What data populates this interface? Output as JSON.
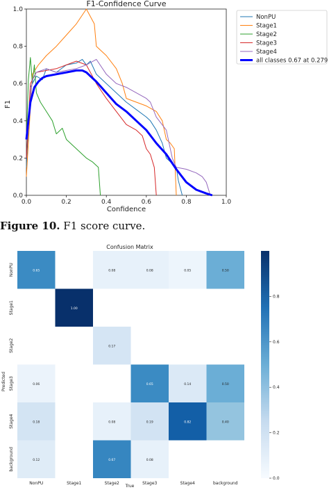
{
  "figure_caption": {
    "label": "Figure 10.",
    "text": "F1 score curve."
  },
  "chart_data": [
    {
      "type": "line",
      "title": "F1-Confidence Curve",
      "xlabel": "Confidence",
      "ylabel": "F1",
      "xlim": [
        0,
        1
      ],
      "ylim": [
        0,
        1
      ],
      "xticks": [
        "0.0",
        "0.2",
        "0.4",
        "0.6",
        "0.8",
        "1.0"
      ],
      "yticks": [
        "0.0",
        "0.2",
        "0.4",
        "0.6",
        "0.8",
        "1.0"
      ],
      "legend_position": "outside-right",
      "series": [
        {
          "name": "NonPU",
          "color": "#1f77b4",
          "width": 1,
          "x": [
            0,
            0.02,
            0.05,
            0.08,
            0.1,
            0.15,
            0.2,
            0.25,
            0.28,
            0.3,
            0.32,
            0.35,
            0.4,
            0.45,
            0.5,
            0.55,
            0.6,
            0.62,
            0.65,
            0.68,
            0.7,
            0.72,
            0.75,
            0.76,
            0.78
          ],
          "y": [
            0.15,
            0.58,
            0.64,
            0.62,
            0.68,
            0.66,
            0.7,
            0.71,
            0.73,
            0.7,
            0.72,
            0.65,
            0.6,
            0.55,
            0.5,
            0.46,
            0.42,
            0.4,
            0.35,
            0.28,
            0.2,
            0.18,
            0.15,
            0.08,
            0.0
          ]
        },
        {
          "name": "Stage1",
          "color": "#ff7f0e",
          "width": 1,
          "x": [
            0,
            0.03,
            0.06,
            0.1,
            0.15,
            0.2,
            0.25,
            0.3,
            0.34,
            0.35,
            0.4,
            0.45,
            0.48,
            0.5,
            0.55,
            0.6,
            0.65,
            0.68,
            0.7,
            0.72,
            0.74,
            0.75
          ],
          "y": [
            0.1,
            0.65,
            0.7,
            0.75,
            0.8,
            0.86,
            0.92,
            1.0,
            0.92,
            0.8,
            0.75,
            0.68,
            0.6,
            0.52,
            0.5,
            0.48,
            0.45,
            0.4,
            0.3,
            0.28,
            0.25,
            0.0
          ]
        },
        {
          "name": "Stage2",
          "color": "#2ca02c",
          "width": 1,
          "x": [
            0,
            0.01,
            0.02,
            0.03,
            0.04,
            0.05,
            0.07,
            0.1,
            0.13,
            0.15,
            0.18,
            0.2,
            0.22,
            0.25,
            0.28,
            0.3,
            0.33,
            0.36,
            0.37
          ],
          "y": [
            0.3,
            0.62,
            0.74,
            0.6,
            0.7,
            0.55,
            0.5,
            0.45,
            0.4,
            0.33,
            0.36,
            0.3,
            0.28,
            0.25,
            0.22,
            0.2,
            0.18,
            0.15,
            0.0
          ]
        },
        {
          "name": "Stage3",
          "color": "#d62728",
          "width": 1,
          "x": [
            0,
            0.02,
            0.05,
            0.1,
            0.15,
            0.2,
            0.25,
            0.3,
            0.35,
            0.4,
            0.45,
            0.5,
            0.55,
            0.58,
            0.6,
            0.62,
            0.64,
            0.65
          ],
          "y": [
            0.2,
            0.6,
            0.66,
            0.67,
            0.68,
            0.7,
            0.72,
            0.7,
            0.6,
            0.52,
            0.45,
            0.38,
            0.35,
            0.32,
            0.25,
            0.22,
            0.15,
            0.0
          ]
        },
        {
          "name": "Stage4",
          "color": "#9467bd",
          "width": 1,
          "x": [
            0,
            0.03,
            0.05,
            0.1,
            0.15,
            0.2,
            0.25,
            0.3,
            0.35,
            0.4,
            0.45,
            0.5,
            0.55,
            0.6,
            0.62,
            0.65,
            0.7,
            0.73,
            0.75,
            0.8,
            0.85,
            0.88,
            0.9,
            0.92
          ],
          "y": [
            0.3,
            0.62,
            0.66,
            0.68,
            0.66,
            0.67,
            0.68,
            0.7,
            0.73,
            0.65,
            0.6,
            0.58,
            0.55,
            0.52,
            0.5,
            0.42,
            0.35,
            0.2,
            0.15,
            0.14,
            0.12,
            0.1,
            0.07,
            0.0
          ]
        },
        {
          "name": "all classes 0.67 at 0.279",
          "color": "#0000ff",
          "width": 3,
          "x": [
            0,
            0.01,
            0.02,
            0.04,
            0.06,
            0.08,
            0.1,
            0.15,
            0.2,
            0.25,
            0.28,
            0.3,
            0.35,
            0.4,
            0.45,
            0.5,
            0.55,
            0.6,
            0.65,
            0.7,
            0.75,
            0.8,
            0.85,
            0.9,
            0.93
          ],
          "y": [
            0.3,
            0.4,
            0.5,
            0.58,
            0.61,
            0.63,
            0.64,
            0.65,
            0.66,
            0.67,
            0.67,
            0.66,
            0.61,
            0.55,
            0.49,
            0.45,
            0.4,
            0.35,
            0.28,
            0.22,
            0.14,
            0.07,
            0.03,
            0.01,
            0.0
          ]
        }
      ]
    },
    {
      "type": "heatmap",
      "title": "Confusion Matrix",
      "xlabel": "True",
      "ylabel": "Predicted",
      "x_categories": [
        "NonPU",
        "Stage1",
        "Stage2",
        "Stage3",
        "Stage4",
        "background"
      ],
      "y_categories": [
        "NonPU",
        "Stage1",
        "Stage2",
        "Stage3",
        "Stage4",
        "background"
      ],
      "values": [
        [
          0.65,
          null,
          0.08,
          0.08,
          0.05,
          0.5
        ],
        [
          null,
          1.0,
          null,
          null,
          null,
          null
        ],
        [
          null,
          null,
          0.17,
          null,
          null,
          null
        ],
        [
          0.06,
          null,
          null,
          0.65,
          0.14,
          0.5
        ],
        [
          0.18,
          null,
          0.08,
          0.19,
          0.82,
          0.4
        ],
        [
          0.12,
          null,
          0.67,
          0.08,
          null,
          null
        ]
      ],
      "colorbar": {
        "min": 0.0,
        "max": 1.0,
        "ticks": [
          "0.0",
          "0.2",
          "0.4",
          "0.6",
          "0.8"
        ],
        "colormap": "Blues"
      }
    }
  ]
}
